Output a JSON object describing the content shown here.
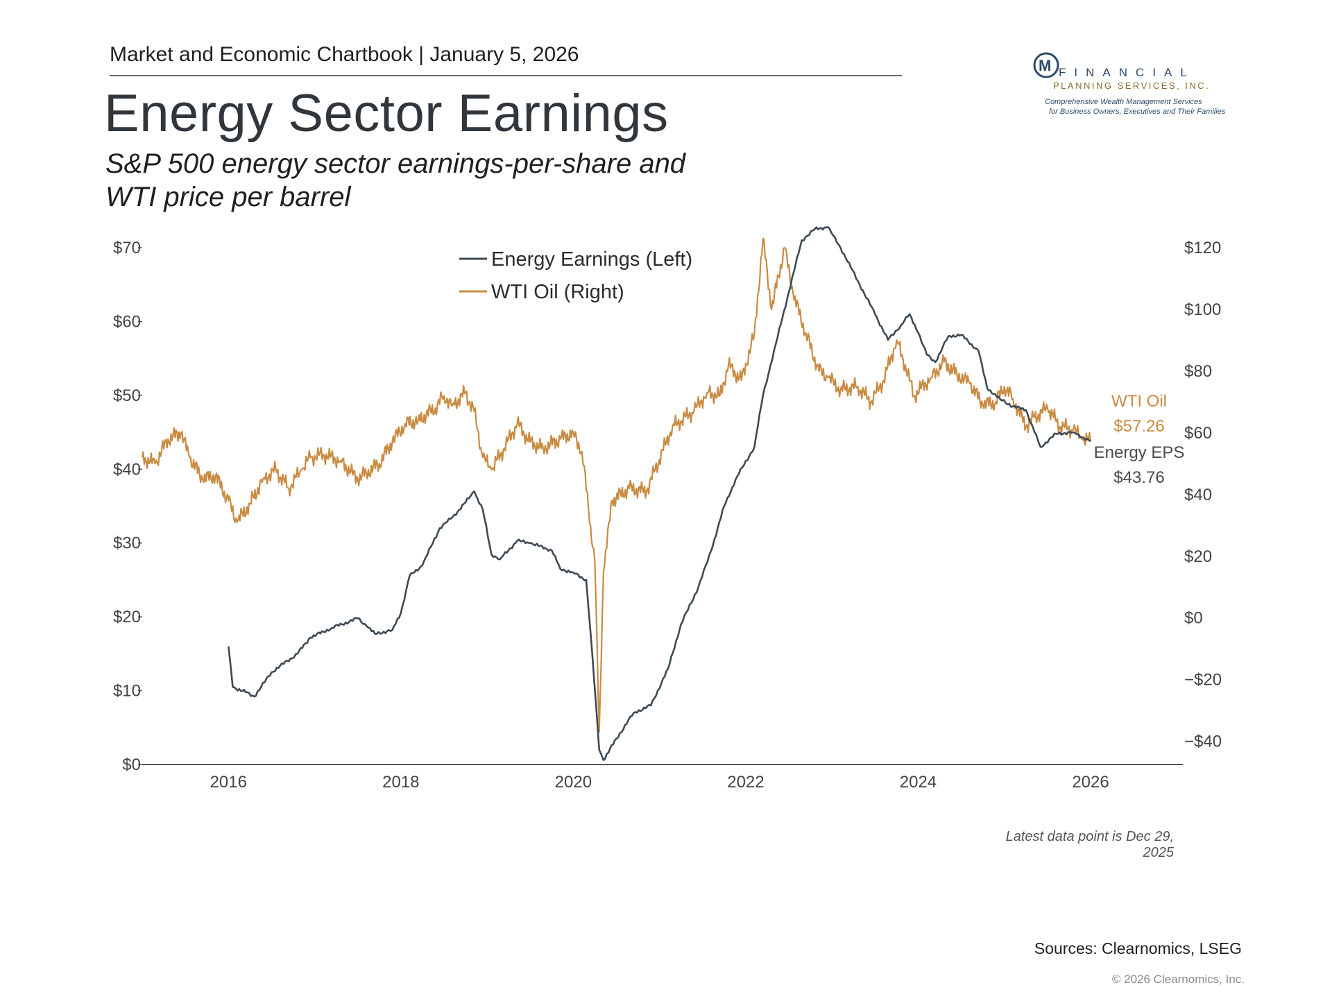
{
  "header": {
    "chartbook_title": "Market and Economic Chartbook | January 5, 2026",
    "title": "Energy Sector Earnings",
    "subtitle": "S&P 500 energy sector earnings-per-share and WTI price per barrel"
  },
  "logo": {
    "initial": "M",
    "line1": "FINANCIAL",
    "line2": "PLANNING SERVICES, INC.",
    "tagline1": "Comprehensive Wealth Management Services",
    "tagline2": "for Business Owners, Executives and Their Families"
  },
  "chart_data": {
    "type": "line",
    "title": "Energy Sector Earnings",
    "subtitle": "S&P 500 energy sector earnings-per-share and WTI price per barrel",
    "x_range": [
      2015.0,
      2027.07
    ],
    "x_ticks": [
      2016,
      2018,
      2020,
      2022,
      2024,
      2026
    ],
    "x_tick_labels": [
      "2016",
      "2018",
      "2020",
      "2022",
      "2024",
      "2026"
    ],
    "y_left": {
      "range": [
        0,
        70
      ],
      "ticks": [
        0,
        10,
        20,
        30,
        40,
        50,
        60,
        70
      ],
      "tick_labels": [
        "$0",
        "$10",
        "$20",
        "$30",
        "$40",
        "$50",
        "$60",
        "$70"
      ]
    },
    "y_right": {
      "range": [
        -47.5,
        120
      ],
      "ticks": [
        -40,
        -20,
        0,
        20,
        40,
        60,
        80,
        100,
        120
      ],
      "tick_labels": [
        "−$40",
        "−$20",
        "$0",
        "$20",
        "$40",
        "$60",
        "$80",
        "$100",
        "$120"
      ]
    },
    "legend": {
      "position": "top-center",
      "entries": [
        "Energy Earnings (Left)",
        "WTI Oil (Right)"
      ]
    },
    "grid": false,
    "colors": {
      "earnings": "#3d4a56",
      "oil": "#c98b42"
    },
    "series": [
      {
        "name": "Energy Earnings (Left)",
        "axis": "left",
        "points": [
          [
            2016.0,
            16.0
          ],
          [
            2016.05,
            10.5
          ],
          [
            2016.2,
            9.8
          ],
          [
            2016.3,
            9.2
          ],
          [
            2016.5,
            12.5
          ],
          [
            2016.8,
            15.0
          ],
          [
            2016.95,
            17.2
          ],
          [
            2017.2,
            18.5
          ],
          [
            2017.5,
            19.8
          ],
          [
            2017.6,
            18.8
          ],
          [
            2017.7,
            17.7
          ],
          [
            2017.9,
            18.2
          ],
          [
            2018.0,
            20.5
          ],
          [
            2018.1,
            25.5
          ],
          [
            2018.25,
            27.0
          ],
          [
            2018.45,
            32.0
          ],
          [
            2018.6,
            33.5
          ],
          [
            2018.75,
            35.5
          ],
          [
            2018.85,
            37.0
          ],
          [
            2018.95,
            34.5
          ],
          [
            2019.05,
            28.5
          ],
          [
            2019.15,
            27.8
          ],
          [
            2019.35,
            30.3
          ],
          [
            2019.5,
            30.0
          ],
          [
            2019.75,
            29.0
          ],
          [
            2019.85,
            26.5
          ],
          [
            2020.0,
            26.0
          ],
          [
            2020.15,
            25.0
          ],
          [
            2020.22,
            15.0
          ],
          [
            2020.3,
            2.0
          ],
          [
            2020.35,
            0.6
          ],
          [
            2020.5,
            3.5
          ],
          [
            2020.7,
            7.0
          ],
          [
            2020.9,
            8.0
          ],
          [
            2021.1,
            13.0
          ],
          [
            2021.25,
            19.0
          ],
          [
            2021.45,
            24.0
          ],
          [
            2021.6,
            29.0
          ],
          [
            2021.75,
            35.0
          ],
          [
            2021.9,
            39.0
          ],
          [
            2022.1,
            43.0
          ],
          [
            2022.2,
            50.0
          ],
          [
            2022.35,
            57.0
          ],
          [
            2022.5,
            64.0
          ],
          [
            2022.65,
            71.0
          ],
          [
            2022.8,
            72.5
          ],
          [
            2022.95,
            72.8
          ],
          [
            2023.1,
            70.0
          ],
          [
            2023.3,
            65.5
          ],
          [
            2023.5,
            61.0
          ],
          [
            2023.65,
            57.5
          ],
          [
            2023.8,
            59.5
          ],
          [
            2023.9,
            61.0
          ],
          [
            2024.0,
            58.5
          ],
          [
            2024.1,
            55.5
          ],
          [
            2024.2,
            54.5
          ],
          [
            2024.35,
            58.0
          ],
          [
            2024.5,
            58.2
          ],
          [
            2024.7,
            56.0
          ],
          [
            2024.8,
            51.0
          ],
          [
            2024.95,
            49.5
          ],
          [
            2025.1,
            48.5
          ],
          [
            2025.25,
            48.0
          ],
          [
            2025.35,
            45.0
          ],
          [
            2025.42,
            43.0
          ],
          [
            2025.6,
            44.8
          ],
          [
            2025.8,
            45.0
          ],
          [
            2026.0,
            43.76
          ]
        ]
      },
      {
        "name": "WTI Oil (Right)",
        "axis": "right",
        "points": [
          [
            2015.0,
            52
          ],
          [
            2015.15,
            50
          ],
          [
            2015.3,
            58
          ],
          [
            2015.45,
            60
          ],
          [
            2015.55,
            52
          ],
          [
            2015.7,
            45
          ],
          [
            2015.85,
            46
          ],
          [
            2016.0,
            38
          ],
          [
            2016.1,
            31
          ],
          [
            2016.25,
            37
          ],
          [
            2016.4,
            45
          ],
          [
            2016.55,
            48
          ],
          [
            2016.7,
            42
          ],
          [
            2016.85,
            48
          ],
          [
            2016.95,
            52
          ],
          [
            2017.1,
            53
          ],
          [
            2017.3,
            51
          ],
          [
            2017.5,
            45
          ],
          [
            2017.6,
            47
          ],
          [
            2017.75,
            50
          ],
          [
            2017.9,
            57
          ],
          [
            2018.05,
            63
          ],
          [
            2018.2,
            64
          ],
          [
            2018.4,
            68
          ],
          [
            2018.5,
            72
          ],
          [
            2018.6,
            69
          ],
          [
            2018.75,
            73
          ],
          [
            2018.85,
            67
          ],
          [
            2018.95,
            52
          ],
          [
            2019.05,
            48
          ],
          [
            2019.2,
            55
          ],
          [
            2019.35,
            63
          ],
          [
            2019.5,
            57
          ],
          [
            2019.65,
            55
          ],
          [
            2019.85,
            58
          ],
          [
            2020.0,
            60
          ],
          [
            2020.1,
            54
          ],
          [
            2020.2,
            30
          ],
          [
            2020.25,
            18
          ],
          [
            2020.3,
            -37
          ],
          [
            2020.35,
            15
          ],
          [
            2020.45,
            38
          ],
          [
            2020.65,
            42
          ],
          [
            2020.85,
            41
          ],
          [
            2020.95,
            48
          ],
          [
            2021.15,
            62
          ],
          [
            2021.4,
            67
          ],
          [
            2021.55,
            73
          ],
          [
            2021.7,
            72
          ],
          [
            2021.8,
            82
          ],
          [
            2021.95,
            77
          ],
          [
            2022.1,
            92
          ],
          [
            2022.2,
            123
          ],
          [
            2022.3,
            100
          ],
          [
            2022.45,
            120
          ],
          [
            2022.55,
            105
          ],
          [
            2022.7,
            92
          ],
          [
            2022.85,
            80
          ],
          [
            2022.95,
            78
          ],
          [
            2023.1,
            74
          ],
          [
            2023.3,
            75
          ],
          [
            2023.45,
            70
          ],
          [
            2023.6,
            77
          ],
          [
            2023.75,
            90
          ],
          [
            2023.85,
            82
          ],
          [
            2023.95,
            72
          ],
          [
            2024.15,
            78
          ],
          [
            2024.3,
            83
          ],
          [
            2024.45,
            79
          ],
          [
            2024.6,
            76
          ],
          [
            2024.75,
            69
          ],
          [
            2024.9,
            70
          ],
          [
            2025.0,
            75
          ],
          [
            2025.1,
            71
          ],
          [
            2025.25,
            62
          ],
          [
            2025.35,
            65
          ],
          [
            2025.5,
            68
          ],
          [
            2025.65,
            62
          ],
          [
            2025.8,
            61
          ],
          [
            2025.9,
            58
          ],
          [
            2026.0,
            57.26
          ]
        ]
      }
    ],
    "annotations": [
      {
        "series": "WTI Oil (Right)",
        "label": "WTI Oil",
        "value_label": "$57.26"
      },
      {
        "series": "Energy Earnings (Left)",
        "label": "Energy EPS",
        "value_label": "$43.76"
      },
      {
        "text": "Latest data point is Dec 29, 2025"
      }
    ]
  },
  "footer": {
    "sources": "Sources: Clearnomics, LSEG",
    "copyright": "© 2026 Clearnomics, Inc."
  }
}
